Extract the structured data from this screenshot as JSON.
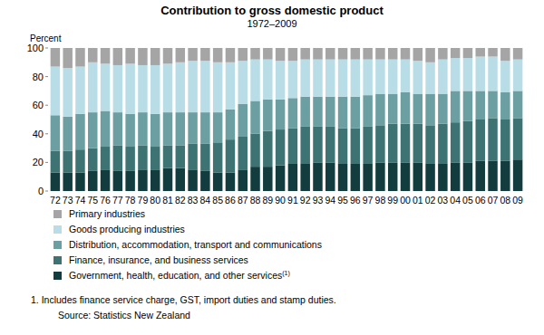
{
  "chart_data": {
    "type": "bar",
    "stacked": true,
    "title": "Contribution to gross domestic product",
    "subtitle": "1972–2009",
    "y_label": "Percent",
    "footnote_ref": "(1)",
    "footnote": "1. Includes finance service charge, GST, import duties and stamp duties.",
    "source": "Source: Statistics New Zealand",
    "categories": [
      "72",
      "73",
      "74",
      "75",
      "76",
      "77",
      "78",
      "79",
      "80",
      "81",
      "82",
      "83",
      "84",
      "85",
      "86",
      "87",
      "88",
      "89",
      "90",
      "91",
      "92",
      "93",
      "94",
      "95",
      "96",
      "97",
      "98",
      "99",
      "00",
      "01",
      "02",
      "03",
      "04",
      "05",
      "06",
      "07",
      "08",
      "09"
    ],
    "series": [
      {
        "name": "Government, health, education, and other services",
        "color": "#123c3d",
        "values": [
          13,
          13,
          13,
          14,
          15,
          14,
          14,
          15,
          15,
          16,
          16,
          15,
          14,
          13,
          13,
          15,
          17,
          17,
          18,
          19,
          19,
          20,
          20,
          19,
          19,
          19,
          20,
          20,
          20,
          20,
          19,
          19,
          20,
          20,
          21,
          21,
          21,
          22
        ]
      },
      {
        "name": "Finance, insurance, and business services",
        "color": "#3e7374",
        "values": [
          15,
          15,
          16,
          16,
          16,
          18,
          17,
          17,
          16,
          16,
          16,
          18,
          19,
          21,
          23,
          23,
          23,
          25,
          25,
          25,
          26,
          25,
          25,
          25,
          25,
          26,
          26,
          27,
          27,
          27,
          27,
          28,
          28,
          29,
          29,
          30,
          29,
          29
        ]
      },
      {
        "name": "Distribution, accommodation, transport and communications",
        "color": "#6b9fa2",
        "values": [
          25,
          24,
          25,
          25,
          25,
          23,
          23,
          23,
          23,
          23,
          23,
          22,
          22,
          21,
          21,
          23,
          23,
          22,
          21,
          21,
          21,
          21,
          21,
          22,
          22,
          22,
          22,
          21,
          22,
          21,
          22,
          21,
          22,
          21,
          20,
          19,
          19,
          19
        ]
      },
      {
        "name": "Goods producing industries",
        "color": "#b9dde6",
        "values": [
          34,
          34,
          33,
          35,
          33,
          33,
          35,
          33,
          34,
          34,
          35,
          36,
          36,
          35,
          33,
          30,
          29,
          28,
          27,
          26,
          26,
          26,
          26,
          26,
          26,
          25,
          24,
          24,
          23,
          23,
          22,
          24,
          23,
          23,
          24,
          24,
          22,
          22
        ]
      },
      {
        "name": "Primary industries",
        "color": "#a5a5a5",
        "values": [
          13,
          14,
          13,
          10,
          11,
          12,
          11,
          12,
          12,
          11,
          10,
          9,
          9,
          10,
          10,
          9,
          8,
          8,
          9,
          9,
          8,
          8,
          8,
          8,
          8,
          8,
          8,
          8,
          8,
          9,
          10,
          8,
          7,
          7,
          6,
          6,
          9,
          8
        ]
      }
    ],
    "ylim": [
      0,
      100
    ],
    "yticks": [
      0,
      20,
      40,
      60,
      80,
      100
    ],
    "grid": false,
    "legend": "bottom"
  }
}
